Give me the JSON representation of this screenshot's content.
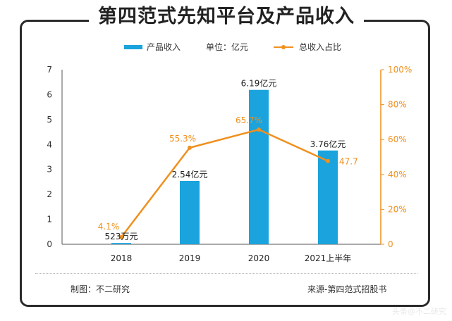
{
  "title": "第四范式先知平台及产品收入",
  "legend": {
    "bar_label": "产品收入",
    "unit_label": "单位：亿元",
    "line_label": "总收入占比"
  },
  "footer": {
    "left": "制图：不二研究",
    "right": "来源-第四范式招股书"
  },
  "watermark": "头条@不二研究",
  "colors": {
    "bar": "#1aa3dc",
    "line": "#f0901e",
    "text": "#333333"
  },
  "chart_data": {
    "type": "bar",
    "categories": [
      "2018",
      "2019",
      "2020",
      "2021上半年"
    ],
    "series": [
      {
        "name": "产品收入",
        "unit": "亿元",
        "axis": "left",
        "values": [
          0.0523,
          2.54,
          6.19,
          3.76
        ],
        "labels": [
          "523万元",
          "2.54亿元",
          "6.19亿元",
          "3.76亿元"
        ]
      },
      {
        "name": "总收入占比",
        "type": "line",
        "axis": "right",
        "values": [
          4.1,
          55.3,
          65.7,
          47.7
        ],
        "labels": [
          "4.1%",
          "55.3%",
          "65.7%",
          "47.7"
        ]
      }
    ],
    "y_left": {
      "min": 0,
      "max": 7,
      "ticks": [
        "0",
        "1",
        "2",
        "3",
        "4",
        "5",
        "6",
        "7"
      ]
    },
    "y_right": {
      "min": 0,
      "max": 100,
      "ticks": [
        "0",
        "20%",
        "40%",
        "60%",
        "80%",
        "100%"
      ]
    }
  }
}
